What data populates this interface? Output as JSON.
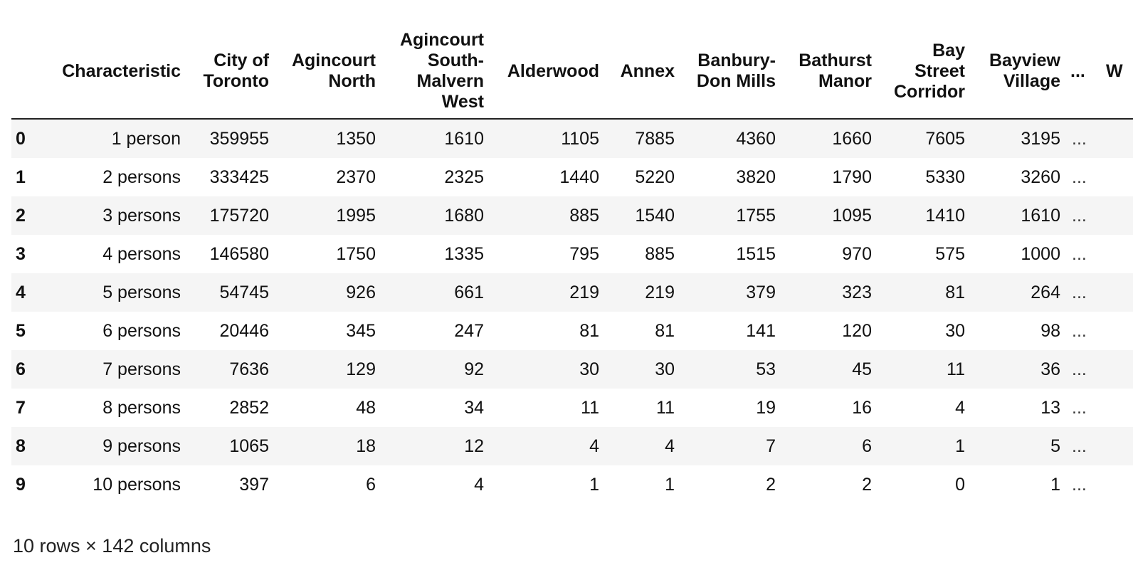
{
  "table": {
    "index_header": "",
    "columns": [
      "Characteristic",
      "City of Toronto",
      "Agincourt North",
      "Agincourt South-Malvern West",
      "Alderwood",
      "Annex",
      "Banbury-Don Mills",
      "Bathurst Manor",
      "Bay Street Corridor",
      "Bayview Village",
      "...",
      "W"
    ],
    "rows": [
      {
        "index": "0",
        "cells": [
          "1 person",
          "359955",
          "1350",
          "1610",
          "1105",
          "7885",
          "4360",
          "1660",
          "7605",
          "3195",
          "..."
        ]
      },
      {
        "index": "1",
        "cells": [
          "2 persons",
          "333425",
          "2370",
          "2325",
          "1440",
          "5220",
          "3820",
          "1790",
          "5330",
          "3260",
          "..."
        ]
      },
      {
        "index": "2",
        "cells": [
          "3 persons",
          "175720",
          "1995",
          "1680",
          "885",
          "1540",
          "1755",
          "1095",
          "1410",
          "1610",
          "..."
        ]
      },
      {
        "index": "3",
        "cells": [
          "4 persons",
          "146580",
          "1750",
          "1335",
          "795",
          "885",
          "1515",
          "970",
          "575",
          "1000",
          "..."
        ]
      },
      {
        "index": "4",
        "cells": [
          "5 persons",
          "54745",
          "926",
          "661",
          "219",
          "219",
          "379",
          "323",
          "81",
          "264",
          "..."
        ]
      },
      {
        "index": "5",
        "cells": [
          "6 persons",
          "20446",
          "345",
          "247",
          "81",
          "81",
          "141",
          "120",
          "30",
          "98",
          "..."
        ]
      },
      {
        "index": "6",
        "cells": [
          "7 persons",
          "7636",
          "129",
          "92",
          "30",
          "30",
          "53",
          "45",
          "11",
          "36",
          "..."
        ]
      },
      {
        "index": "7",
        "cells": [
          "8 persons",
          "2852",
          "48",
          "34",
          "11",
          "11",
          "19",
          "16",
          "4",
          "13",
          "..."
        ]
      },
      {
        "index": "8",
        "cells": [
          "9 persons",
          "1065",
          "18",
          "12",
          "4",
          "4",
          "7",
          "6",
          "1",
          "5",
          "..."
        ]
      },
      {
        "index": "9",
        "cells": [
          "10 persons",
          "397",
          "6",
          "4",
          "1",
          "1",
          "2",
          "2",
          "0",
          "1",
          "..."
        ]
      }
    ]
  },
  "caption": "10 rows × 142 columns"
}
